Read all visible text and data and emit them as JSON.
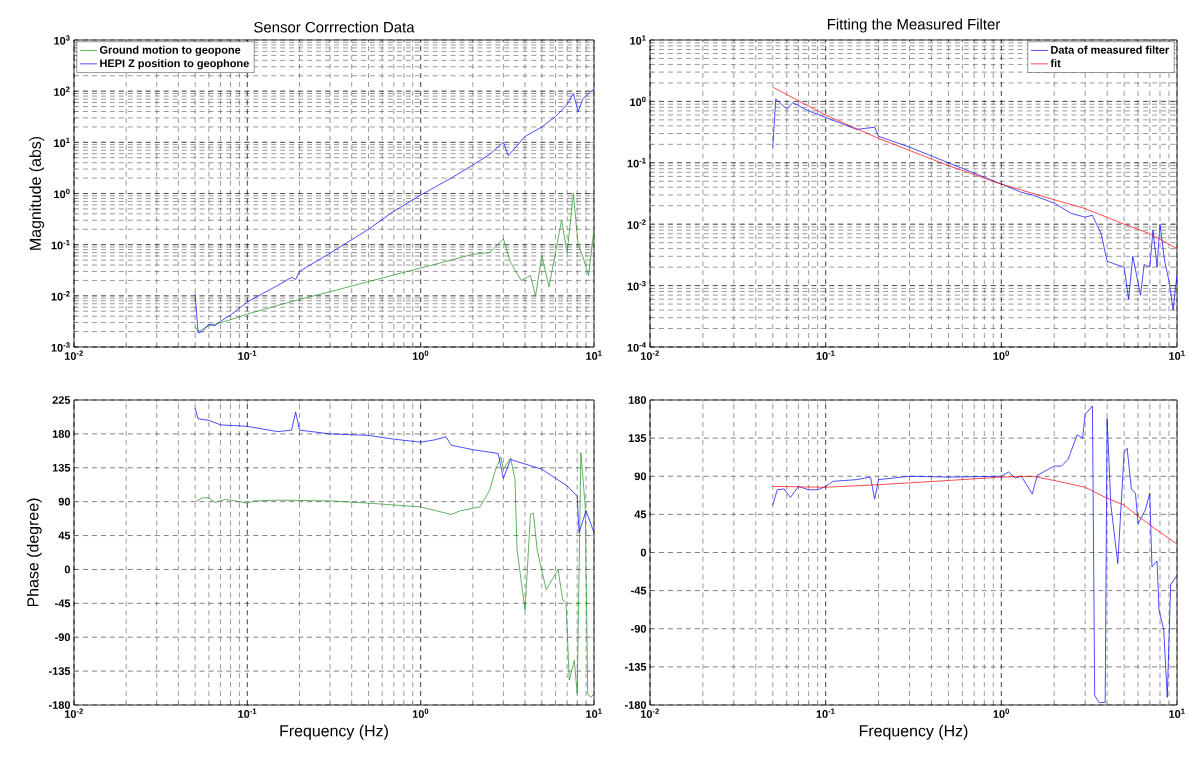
{
  "chart_data": [
    {
      "type": "line",
      "title": "Sensor Corrrection Data",
      "ylabel": "Magnitude (abs)",
      "log": "xy",
      "grid": true,
      "legend": "top left",
      "xlim": [
        0.01,
        10
      ],
      "ylim": [
        0.001,
        1000
      ],
      "xticks": [
        {
          "value": 0.01,
          "label": "10$^{-2}$"
        },
        {
          "value": 0.1,
          "label": "10$^{-1}$"
        },
        {
          "value": 1,
          "label": "10$^{0}$"
        },
        {
          "value": 10,
          "label": "10$^{1}$"
        }
      ],
      "yticks": [
        {
          "value": 0.001,
          "label": "10$^{-3}$"
        },
        {
          "value": 0.01,
          "label": "10$^{-2}$"
        },
        {
          "value": 0.1,
          "label": "10$^{-1}$"
        },
        {
          "value": 1,
          "label": "10$^{0}$"
        },
        {
          "value": 10,
          "label": "10$^{1}$"
        },
        {
          "value": 100,
          "label": "10$^{2}$"
        },
        {
          "value": 1000,
          "label": "10$^{3}$"
        }
      ],
      "series": [
        {
          "name": "Ground motion to geopone",
          "color": "#1f8c1f",
          "x": [
            0.05,
            0.052,
            0.06,
            0.07,
            0.08,
            0.1,
            0.15,
            0.2,
            0.3,
            0.5,
            1,
            1.5,
            2,
            2.5,
            3.0,
            3.3,
            3.8,
            4.3,
            4.6,
            5.0,
            5.5,
            6,
            6.5,
            7,
            7.6,
            8.1,
            8.6,
            9.3,
            10
          ],
          "values": [
            0.0025,
            0.002,
            0.0026,
            0.003,
            0.0034,
            0.0044,
            0.0065,
            0.0085,
            0.012,
            0.019,
            0.035,
            0.05,
            0.065,
            0.07,
            0.13,
            0.045,
            0.02,
            0.025,
            0.01,
            0.06,
            0.015,
            0.07,
            0.3,
            0.07,
            1.0,
            0.1,
            0.06,
            0.025,
            0.2
          ]
        },
        {
          "name": "HEPI Z position to geophone",
          "color": "#0000ff",
          "x": [
            0.05,
            0.052,
            0.055,
            0.06,
            0.065,
            0.07,
            0.08,
            0.1,
            0.15,
            0.18,
            0.19,
            0.2,
            0.3,
            0.5,
            0.7,
            1,
            1.5,
            2,
            2.5,
            3,
            3.2,
            4,
            5,
            6,
            7,
            7.6,
            8.1,
            8.6,
            10
          ],
          "values": [
            0.011,
            0.0019,
            0.002,
            0.0028,
            0.0026,
            0.0032,
            0.0042,
            0.0076,
            0.016,
            0.023,
            0.021,
            0.03,
            0.068,
            0.2,
            0.45,
            0.93,
            2.0,
            3.6,
            5.8,
            10,
            5.5,
            13,
            20,
            32,
            55,
            90,
            40,
            70,
            110
          ]
        }
      ]
    },
    {
      "type": "line",
      "title": "Fitting the Measured Filter",
      "log": "xy",
      "grid": true,
      "legend": "top right",
      "xlim": [
        0.01,
        10
      ],
      "ylim": [
        0.0001,
        10
      ],
      "xticks": [
        {
          "value": 0.01,
          "label": "10$^{-2}$"
        },
        {
          "value": 0.1,
          "label": "10$^{-1}$"
        },
        {
          "value": 1,
          "label": "10$^{0}$"
        },
        {
          "value": 10,
          "label": "10$^{1}$"
        }
      ],
      "yticks": [
        {
          "value": 0.0001,
          "label": "10$^{-4}$"
        },
        {
          "value": 0.001,
          "label": "10$^{-3}$"
        },
        {
          "value": 0.01,
          "label": "10$^{-2}$"
        },
        {
          "value": 0.1,
          "label": "10$^{-1}$"
        },
        {
          "value": 1,
          "label": "10$^{0}$"
        },
        {
          "value": 10,
          "label": "10$^{1}$"
        }
      ],
      "series": [
        {
          "name": "Data of measured filter",
          "color": "#0000ff",
          "x": [
            0.05,
            0.052,
            0.06,
            0.065,
            0.08,
            0.1,
            0.15,
            0.19,
            0.2,
            0.3,
            0.5,
            1,
            1.3,
            1.5,
            2,
            2.5,
            3,
            3.3,
            3.7,
            4,
            4.5,
            5,
            5.3,
            5.6,
            6.2,
            6.5,
            7,
            7.3,
            7.7,
            8,
            8.5,
            9,
            9.5,
            10
          ],
          "values": [
            0.18,
            1.1,
            0.75,
            0.95,
            0.7,
            0.55,
            0.35,
            0.38,
            0.27,
            0.18,
            0.1,
            0.045,
            0.033,
            0.03,
            0.022,
            0.015,
            0.013,
            0.014,
            0.007,
            0.0025,
            0.0022,
            0.002,
            0.0006,
            0.003,
            0.0007,
            0.0022,
            0.002,
            0.008,
            0.002,
            0.01,
            0.0025,
            0.0012,
            0.0004,
            0.0015
          ]
        },
        {
          "name": "fit",
          "color": "#ff0000",
          "x": [
            0.05,
            0.1,
            0.2,
            0.5,
            1,
            2,
            3,
            5,
            7,
            10
          ],
          "values": [
            1.7,
            0.6,
            0.25,
            0.09,
            0.045,
            0.025,
            0.018,
            0.01,
            0.007,
            0.004
          ]
        }
      ]
    },
    {
      "type": "line",
      "xlabel": "Frequency (Hz)",
      "ylabel": "Phase (degree)",
      "log": "x",
      "grid": true,
      "xlim": [
        0.01,
        10
      ],
      "ylim": [
        -180,
        225
      ],
      "xticks": [
        {
          "value": 0.01,
          "label": "10$^{-2}$"
        },
        {
          "value": 0.1,
          "label": "10$^{-1}$"
        },
        {
          "value": 1,
          "label": "10$^{0}$"
        },
        {
          "value": 10,
          "label": "10$^{1}$"
        }
      ],
      "yticks": [
        -180,
        -135,
        -90,
        -45,
        0,
        45,
        90,
        135,
        180,
        225
      ],
      "series": [
        {
          "color": "#1f8c1f",
          "x": [
            0.05,
            0.055,
            0.06,
            0.065,
            0.075,
            0.09,
            0.1,
            0.11,
            0.15,
            0.3,
            0.5,
            1,
            1.5,
            1.7,
            2.2,
            2.5,
            2.7,
            2.9,
            3.0,
            3.3,
            3.5,
            3.6,
            4.0,
            4.3,
            4.47,
            4.7,
            5.3,
            6.2,
            6.6,
            6.9,
            7.2,
            7.7,
            8.0,
            8.4,
            8.9,
            9.2,
            9.6,
            10
          ],
          "values": [
            90,
            95,
            95,
            89,
            93,
            90,
            88,
            91,
            92,
            91,
            88,
            83,
            73,
            78,
            83,
            105,
            132,
            149,
            133,
            148,
            120,
            26,
            -54,
            73,
            75,
            26,
            -27,
            0,
            -40,
            -45,
            -147,
            -121,
            -165,
            155,
            84,
            -165,
            -170,
            -165
          ]
        },
        {
          "color": "#0000ff",
          "x": [
            0.05,
            0.052,
            0.06,
            0.07,
            0.1,
            0.15,
            0.18,
            0.19,
            0.2,
            0.3,
            0.5,
            0.7,
            1,
            1.2,
            1.4,
            1.5,
            2,
            2.8,
            3.0,
            3.3,
            5,
            7,
            8,
            8.2,
            9,
            10
          ],
          "values": [
            214,
            200,
            198,
            192,
            190,
            183,
            185,
            209,
            185,
            180,
            178,
            173,
            169,
            172,
            176,
            165,
            159,
            154,
            121,
            146,
            133,
            111,
            97,
            49,
            78,
            49
          ]
        }
      ]
    },
    {
      "type": "line",
      "xlabel": "Frequency (Hz)",
      "log": "x",
      "grid": true,
      "xlim": [
        0.01,
        10
      ],
      "ylim": [
        -180,
        180
      ],
      "xticks": [
        {
          "value": 0.01,
          "label": "10$^{-2}$"
        },
        {
          "value": 0.1,
          "label": "10$^{-1}$"
        },
        {
          "value": 1,
          "label": "10$^{0}$"
        },
        {
          "value": 10,
          "label": "10$^{1}$"
        }
      ],
      "yticks": [
        -180,
        -135,
        -90,
        -45,
        0,
        45,
        90,
        135,
        180
      ],
      "series": [
        {
          "color": "#0000ff",
          "x": [
            0.05,
            0.053,
            0.058,
            0.063,
            0.07,
            0.08,
            0.09,
            0.1,
            0.11,
            0.15,
            0.18,
            0.19,
            0.2,
            0.3,
            0.5,
            1,
            1.1,
            1.2,
            1.3,
            1.5,
            1.6,
            2,
            2.2,
            2.4,
            2.7,
            2.9,
            3.0,
            3.3,
            3.4,
            3.6,
            3.9,
            4.0,
            4.2,
            4.6,
            5.0,
            5.2,
            5.5,
            5.8,
            6.0,
            6.6,
            7.0,
            7.2,
            7.7,
            7.9,
            8.4,
            8.8,
            9.2,
            10
          ],
          "values": [
            56,
            74,
            75,
            65,
            78,
            74,
            74,
            78,
            84,
            86,
            89,
            63,
            86,
            90,
            89,
            90,
            95,
            88,
            90,
            69,
            91,
            102,
            102,
            110,
            139,
            135,
            163,
            173,
            -169,
            -177,
            -177,
            158,
            57,
            -13,
            118,
            123,
            75,
            70,
            34,
            50,
            70,
            -17,
            -10,
            -68,
            -91,
            -171,
            -38,
            -27
          ]
        },
        {
          "color": "#ff0000",
          "x": [
            0.05,
            0.1,
            0.2,
            0.5,
            1,
            1.5,
            2,
            3,
            4,
            5,
            6,
            7.5,
            10
          ],
          "values": [
            78,
            77,
            80,
            85,
            89,
            90,
            85,
            77,
            64,
            56,
            43,
            28,
            10
          ]
        }
      ]
    }
  ]
}
